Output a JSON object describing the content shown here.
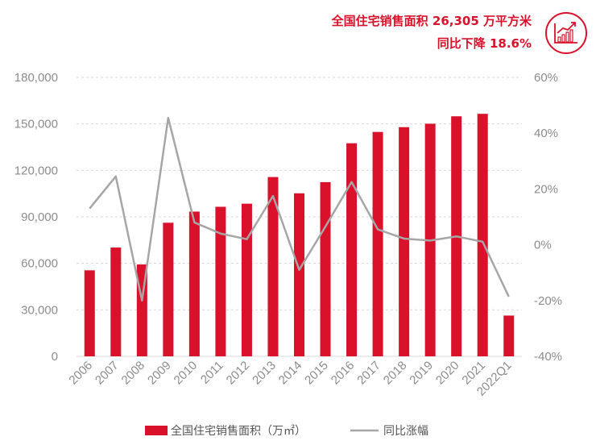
{
  "headline": {
    "line1": "全国住宅销售面积 26,305 万平方米",
    "line2": "同比下降 18.6%",
    "icon": "growth-chart-icon"
  },
  "colors": {
    "bar": "#d9112b",
    "line": "#a6a6a6",
    "grid": "#d9d9d9",
    "text": "#8c8c8c",
    "accent": "#d9112b"
  },
  "chart_data": {
    "type": "bar",
    "categories": [
      "2006",
      "2007",
      "2008",
      "2009",
      "2010",
      "2011",
      "2012",
      "2013",
      "2014",
      "2015",
      "2016",
      "2017",
      "2018",
      "2019",
      "2020",
      "2021",
      "2022Q1"
    ],
    "series": [
      {
        "name": "全国住宅销售面积（万㎡）",
        "type": "bar",
        "axis": "left",
        "values": [
          55500,
          70200,
          59300,
          86200,
          93400,
          96500,
          98500,
          115700,
          105200,
          112400,
          137500,
          144800,
          147900,
          150100,
          154900,
          156500,
          26305
        ]
      },
      {
        "name": "同比涨幅",
        "type": "line",
        "axis": "right",
        "values": [
          13.0,
          24.5,
          -20.0,
          45.5,
          8.0,
          4.0,
          2.0,
          17.5,
          -9.0,
          6.5,
          22.5,
          5.5,
          2.2,
          1.5,
          3.0,
          1.1,
          -18.6
        ]
      }
    ],
    "y_left": {
      "min": 0,
      "max": 180000,
      "ticks": [
        0,
        30000,
        60000,
        90000,
        120000,
        150000,
        180000
      ],
      "tick_labels": [
        "0",
        "30,000",
        "60,000",
        "90,000",
        "120,000",
        "150,000",
        "180,000"
      ]
    },
    "y_right": {
      "min": -40,
      "max": 60,
      "ticks": [
        -40,
        -20,
        0,
        20,
        40,
        60
      ],
      "tick_labels": [
        "-40%",
        "-20%",
        "0%",
        "20%",
        "40%",
        "60%"
      ]
    },
    "grid": true,
    "legend": {
      "position": "bottom",
      "items": [
        "全国住宅销售面积（万㎡）",
        "同比涨幅"
      ]
    }
  }
}
